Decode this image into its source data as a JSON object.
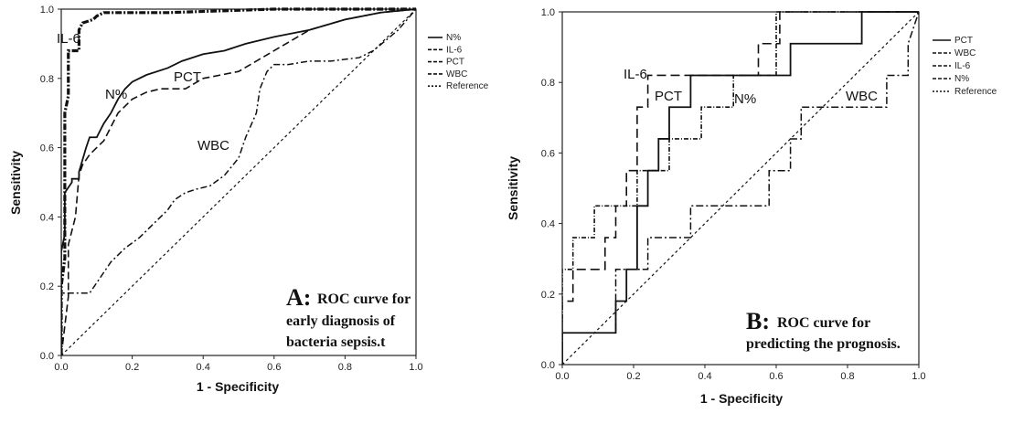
{
  "chart_data": [
    {
      "panel": "A",
      "type": "line",
      "xlabel": "1 - Specificity",
      "ylabel": "Sensitivity",
      "xlim": [
        0,
        1
      ],
      "ylim": [
        0,
        1
      ],
      "xticks": [
        "0.0",
        "0.2",
        "0.4",
        "0.6",
        "0.8",
        "1.0"
      ],
      "yticks": [
        "0.0",
        "0.2",
        "0.4",
        "0.6",
        "0.8",
        "1.0"
      ],
      "grid": false,
      "legend_placement": "outside-right",
      "legend": [
        "N%",
        "IL-6",
        "PCT",
        "WBC",
        "Reference"
      ],
      "series": [
        {
          "name": "IL-6",
          "label": "IL-6",
          "color": "#111111",
          "dash": "7,2,2,2",
          "width": 3.2,
          "x": [
            0,
            0,
            0.01,
            0.01,
            0.02,
            0.02,
            0.05,
            0.05,
            0.06,
            0.09,
            0.1,
            0.12,
            0.14,
            0.2,
            0.3,
            0.6,
            1.0
          ],
          "y": [
            0,
            0.2,
            0.28,
            0.7,
            0.75,
            0.88,
            0.88,
            0.94,
            0.96,
            0.97,
            0.98,
            0.99,
            0.99,
            0.99,
            0.99,
            1.0,
            1.0
          ]
        },
        {
          "name": "N%",
          "label": "N%",
          "color": "#111111",
          "dash": "",
          "width": 1.8,
          "x": [
            0,
            0,
            0.01,
            0.01,
            0.03,
            0.03,
            0.05,
            0.05,
            0.07,
            0.08,
            0.1,
            0.11,
            0.12,
            0.14,
            0.16,
            0.18,
            0.2,
            0.24,
            0.3,
            0.34,
            0.4,
            0.46,
            0.52,
            0.6,
            0.7,
            0.8,
            0.9,
            1.0
          ],
          "y": [
            0,
            0.3,
            0.35,
            0.47,
            0.5,
            0.51,
            0.51,
            0.53,
            0.6,
            0.63,
            0.63,
            0.65,
            0.67,
            0.7,
            0.74,
            0.77,
            0.79,
            0.81,
            0.83,
            0.85,
            0.87,
            0.88,
            0.9,
            0.92,
            0.94,
            0.97,
            0.99,
            1.0
          ]
        },
        {
          "name": "PCT",
          "label": "PCT",
          "color": "#111111",
          "dash": "8,4",
          "width": 1.6,
          "x": [
            0,
            0.02,
            0.02,
            0.04,
            0.05,
            0.06,
            0.08,
            0.1,
            0.12,
            0.14,
            0.16,
            0.2,
            0.24,
            0.28,
            0.35,
            0.4,
            0.5,
            0.6,
            0.7,
            0.8,
            0.9,
            1.0
          ],
          "y": [
            0,
            0.17,
            0.32,
            0.4,
            0.52,
            0.55,
            0.58,
            0.6,
            0.62,
            0.66,
            0.7,
            0.74,
            0.76,
            0.77,
            0.77,
            0.8,
            0.82,
            0.88,
            0.94,
            0.97,
            0.99,
            1.0
          ]
        },
        {
          "name": "WBC",
          "label": "WBC",
          "color": "#111111",
          "dash": "7,3,2,3",
          "width": 1.5,
          "x": [
            0,
            0,
            0.08,
            0.1,
            0.14,
            0.18,
            0.22,
            0.26,
            0.3,
            0.32,
            0.35,
            0.38,
            0.42,
            0.46,
            0.5,
            0.52,
            0.55,
            0.56,
            0.58,
            0.6,
            0.64,
            0.7,
            0.76,
            0.84,
            0.88,
            0.95,
            1.0
          ],
          "y": [
            0,
            0.18,
            0.18,
            0.21,
            0.27,
            0.31,
            0.34,
            0.38,
            0.42,
            0.45,
            0.47,
            0.48,
            0.49,
            0.52,
            0.57,
            0.63,
            0.7,
            0.77,
            0.82,
            0.84,
            0.84,
            0.85,
            0.85,
            0.86,
            0.88,
            0.94,
            1.0
          ]
        },
        {
          "name": "Reference",
          "color": "#111111",
          "dash": "3,3",
          "width": 1.2,
          "x": [
            0,
            1
          ],
          "y": [
            0,
            1
          ]
        }
      ],
      "annotation": {
        "head": "A:",
        "lines": [
          "ROC curve for",
          "early diagnosis of",
          "bacteria sepsis.t"
        ]
      }
    },
    {
      "panel": "B",
      "type": "line",
      "xlabel": "1 - Specificity",
      "ylabel": "Sensitivity",
      "xlim": [
        0,
        1
      ],
      "ylim": [
        0,
        1
      ],
      "xticks": [
        "0.0",
        "0.2",
        "0.4",
        "0.6",
        "0.8",
        "1.0"
      ],
      "yticks": [
        "0.0",
        "0.2",
        "0.4",
        "0.6",
        "0.8",
        "1.0"
      ],
      "grid": false,
      "legend_placement": "outside-right",
      "legend": [
        "PCT",
        "WBC",
        "IL-6",
        "N%",
        "Reference"
      ],
      "series": [
        {
          "name": "PCT",
          "label": "PCT",
          "color": "#111111",
          "dash": "",
          "width": 1.8,
          "x": [
            0,
            0,
            0.15,
            0.15,
            0.18,
            0.18,
            0.21,
            0.21,
            0.24,
            0.24,
            0.27,
            0.27,
            0.3,
            0.3,
            0.36,
            0.36,
            0.64,
            0.64,
            0.84,
            0.84,
            1.0,
            1.0
          ],
          "y": [
            0,
            0.09,
            0.09,
            0.18,
            0.18,
            0.27,
            0.27,
            0.45,
            0.45,
            0.55,
            0.55,
            0.64,
            0.64,
            0.73,
            0.73,
            0.82,
            0.82,
            0.91,
            0.91,
            1.0,
            1.0,
            1.0
          ]
        },
        {
          "name": "WBC",
          "label": "WBC",
          "color": "#111111",
          "dash": "8,3,2,3",
          "width": 1.5,
          "x": [
            0,
            0,
            0.15,
            0.15,
            0.24,
            0.24,
            0.36,
            0.36,
            0.58,
            0.58,
            0.64,
            0.64,
            0.67,
            0.67,
            0.7,
            0.7,
            0.85,
            0.85,
            0.91,
            0.91,
            0.97,
            0.97,
            1.0
          ],
          "y": [
            0,
            0.09,
            0.09,
            0.27,
            0.27,
            0.36,
            0.36,
            0.45,
            0.45,
            0.55,
            0.55,
            0.64,
            0.64,
            0.73,
            0.73,
            0.73,
            0.73,
            0.73,
            0.73,
            0.82,
            0.82,
            0.91,
            1.0
          ]
        },
        {
          "name": "IL-6",
          "label": "IL-6",
          "color": "#111111",
          "dash": "10,5",
          "width": 1.6,
          "x": [
            0,
            0,
            0.03,
            0.03,
            0.06,
            0.06,
            0.12,
            0.12,
            0.15,
            0.15,
            0.18,
            0.18,
            0.21,
            0.21,
            0.24,
            0.24,
            0.55,
            0.55,
            0.61,
            0.61,
            1.0
          ],
          "y": [
            0,
            0.18,
            0.18,
            0.27,
            0.27,
            0.27,
            0.27,
            0.36,
            0.36,
            0.45,
            0.45,
            0.55,
            0.55,
            0.73,
            0.73,
            0.82,
            0.82,
            0.91,
            0.91,
            1.0,
            1.0
          ]
        },
        {
          "name": "N%",
          "label": "N%",
          "color": "#111111",
          "dash": "5,2,1,2",
          "width": 1.6,
          "x": [
            0,
            0,
            0.03,
            0.03,
            0.09,
            0.09,
            0.21,
            0.21,
            0.3,
            0.3,
            0.39,
            0.39,
            0.48,
            0.48,
            0.6,
            0.6,
            0.9,
            0.9,
            1.0
          ],
          "y": [
            0,
            0.27,
            0.27,
            0.36,
            0.36,
            0.45,
            0.45,
            0.55,
            0.55,
            0.64,
            0.64,
            0.73,
            0.73,
            0.82,
            0.82,
            1.0,
            1.0,
            1.0,
            1.0
          ]
        },
        {
          "name": "Reference",
          "color": "#111111",
          "dash": "3,3",
          "width": 1.2,
          "x": [
            0,
            1
          ],
          "y": [
            0,
            1
          ]
        }
      ],
      "annotation": {
        "head": "B:",
        "lines": [
          "ROC curve for",
          "predicting the prognosis."
        ]
      }
    }
  ]
}
